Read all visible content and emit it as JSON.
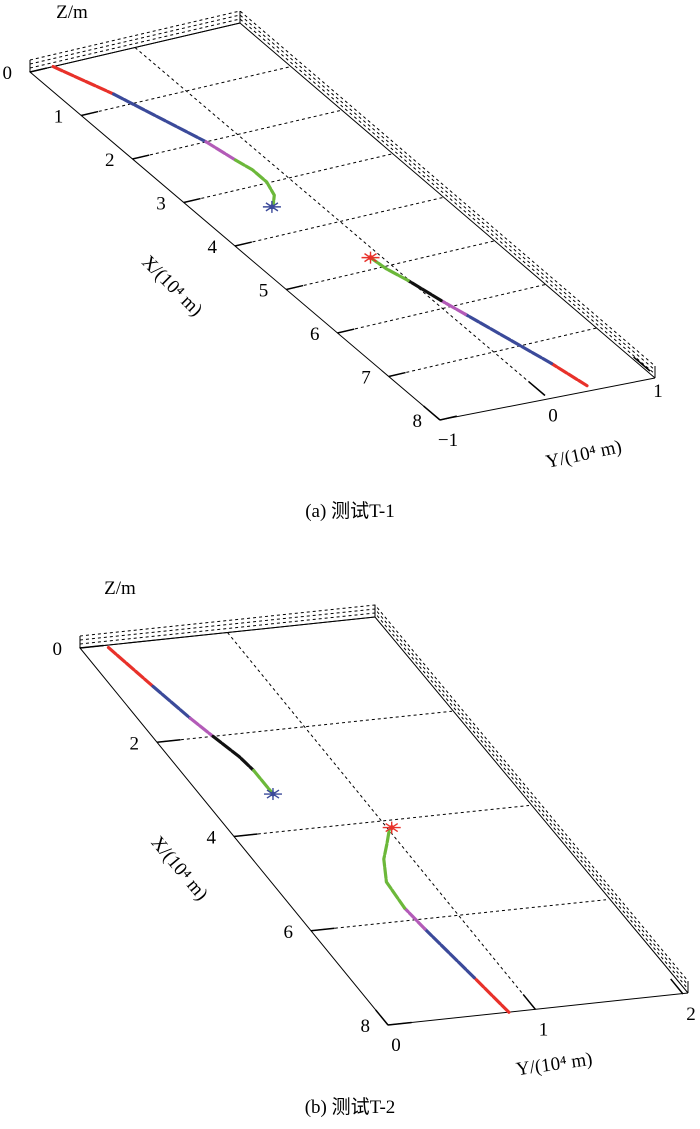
{
  "chart_data": [
    {
      "type": "line",
      "projection": "3d",
      "caption": "(a) 测试T-1",
      "xlabel": "X/(10⁴ m)",
      "ylabel": "Y/(10⁴ m)",
      "zlabel": "Z/m",
      "xlim": [
        0,
        8
      ],
      "ylim": [
        -1,
        1
      ],
      "x_ticks": [
        "0",
        "1",
        "2",
        "3",
        "4",
        "5",
        "6",
        "7",
        "8"
      ],
      "y_ticks": [
        "−1",
        "0",
        "1"
      ],
      "grid": true,
      "series": [
        {
          "segments": [
            {
              "color": "#e8312a",
              "points": [
                [
                  0,
                  -0.78
                ],
                [
                  0.75,
                  -0.57
                ]
              ]
            },
            {
              "color": "#3b4a9a",
              "points": [
                [
                  0.75,
                  -0.57
                ],
                [
                  2.0,
                  -0.3
                ]
              ]
            },
            {
              "color": "#b35bb8",
              "points": [
                [
                  2.0,
                  -0.3
                ],
                [
                  2.45,
                  -0.24
                ]
              ]
            },
            {
              "color": "#6cb83a",
              "points": [
                [
                  2.45,
                  -0.24
                ],
                [
                  2.7,
                  -0.2
                ],
                [
                  2.98,
                  -0.2
                ],
                [
                  3.25,
                  -0.26
                ],
                [
                  3.45,
                  -0.37
                ]
              ]
            }
          ],
          "end_marker": {
            "color": "#3b4a9a",
            "x": 3.45,
            "y": -0.38
          }
        },
        {
          "segments": [
            {
              "color": "#e8312a",
              "points": [
                [
                  8.0,
                  0.4
                ],
                [
                  7.45,
                  0.33
                ]
              ]
            },
            {
              "color": "#3b4a9a",
              "points": [
                [
                  7.45,
                  0.33
                ],
                [
                  6.2,
                  0.12
                ]
              ]
            },
            {
              "color": "#b35bb8",
              "points": [
                [
                  6.2,
                  0.12
                ],
                [
                  5.85,
                  0.06
                ]
              ]
            },
            {
              "color": "#111111",
              "points": [
                [
                  5.85,
                  0.06
                ],
                [
                  5.35,
                  -0.01
                ]
              ]
            },
            {
              "color": "#6cb83a",
              "points": [
                [
                  5.35,
                  -0.01
                ],
                [
                  5.05,
                  -0.07
                ],
                [
                  4.8,
                  -0.09
                ]
              ]
            }
          ],
          "end_marker": {
            "color": "#e8312a",
            "x": 4.78,
            "y": -0.09
          }
        }
      ]
    },
    {
      "type": "line",
      "projection": "3d",
      "caption": "(b) 测试T-2",
      "xlabel": "X/(10⁴ m)",
      "ylabel": "Y/(10⁴ m)",
      "zlabel": "Z/m",
      "xlim": [
        0,
        8
      ],
      "ylim": [
        0,
        2
      ],
      "x_ticks": [
        "0",
        "2",
        "4",
        "6",
        "8"
      ],
      "y_ticks": [
        "0",
        "1",
        "2"
      ],
      "grid": true,
      "series": [
        {
          "segments": [
            {
              "color": "#e8312a",
              "points": [
                [
                  0.05,
                  0.18
                ],
                [
                  0.9,
                  0.26
                ]
              ]
            },
            {
              "color": "#3b4a9a",
              "points": [
                [
                  0.9,
                  0.26
                ],
                [
                  1.6,
                  0.33
                ]
              ]
            },
            {
              "color": "#b35bb8",
              "points": [
                [
                  1.6,
                  0.33
                ],
                [
                  2.0,
                  0.38
                ]
              ]
            },
            {
              "color": "#111111",
              "points": [
                [
                  2.0,
                  0.38
                ],
                [
                  2.45,
                  0.44
                ],
                [
                  2.75,
                  0.46
                ]
              ]
            },
            {
              "color": "#6cb83a",
              "points": [
                [
                  2.75,
                  0.46
                ],
                [
                  3.2,
                  0.46
                ]
              ]
            }
          ],
          "end_marker": {
            "color": "#3b4a9a",
            "x": 3.25,
            "y": 0.46
          }
        },
        {
          "segments": [
            {
              "color": "#e8312a",
              "points": [
                [
                  8.0,
                  0.82
                ],
                [
                  7.25,
                  0.78
                ]
              ]
            },
            {
              "color": "#3b4a9a",
              "points": [
                [
                  7.25,
                  0.78
                ],
                [
                  6.2,
                  0.72
                ]
              ]
            },
            {
              "color": "#b35bb8",
              "points": [
                [
                  6.2,
                  0.72
                ],
                [
                  5.75,
                  0.7
                ]
              ]
            },
            {
              "color": "#6cb83a",
              "points": [
                [
                  5.75,
                  0.7
                ],
                [
                  5.2,
                  0.72
                ],
                [
                  4.75,
                  0.82
                ],
                [
                  4.45,
                  0.92
                ],
                [
                  4.2,
                  1.0
                ]
              ]
            }
          ],
          "end_marker": {
            "color": "#e8312a",
            "x": 4.15,
            "y": 1.03
          }
        }
      ]
    }
  ]
}
